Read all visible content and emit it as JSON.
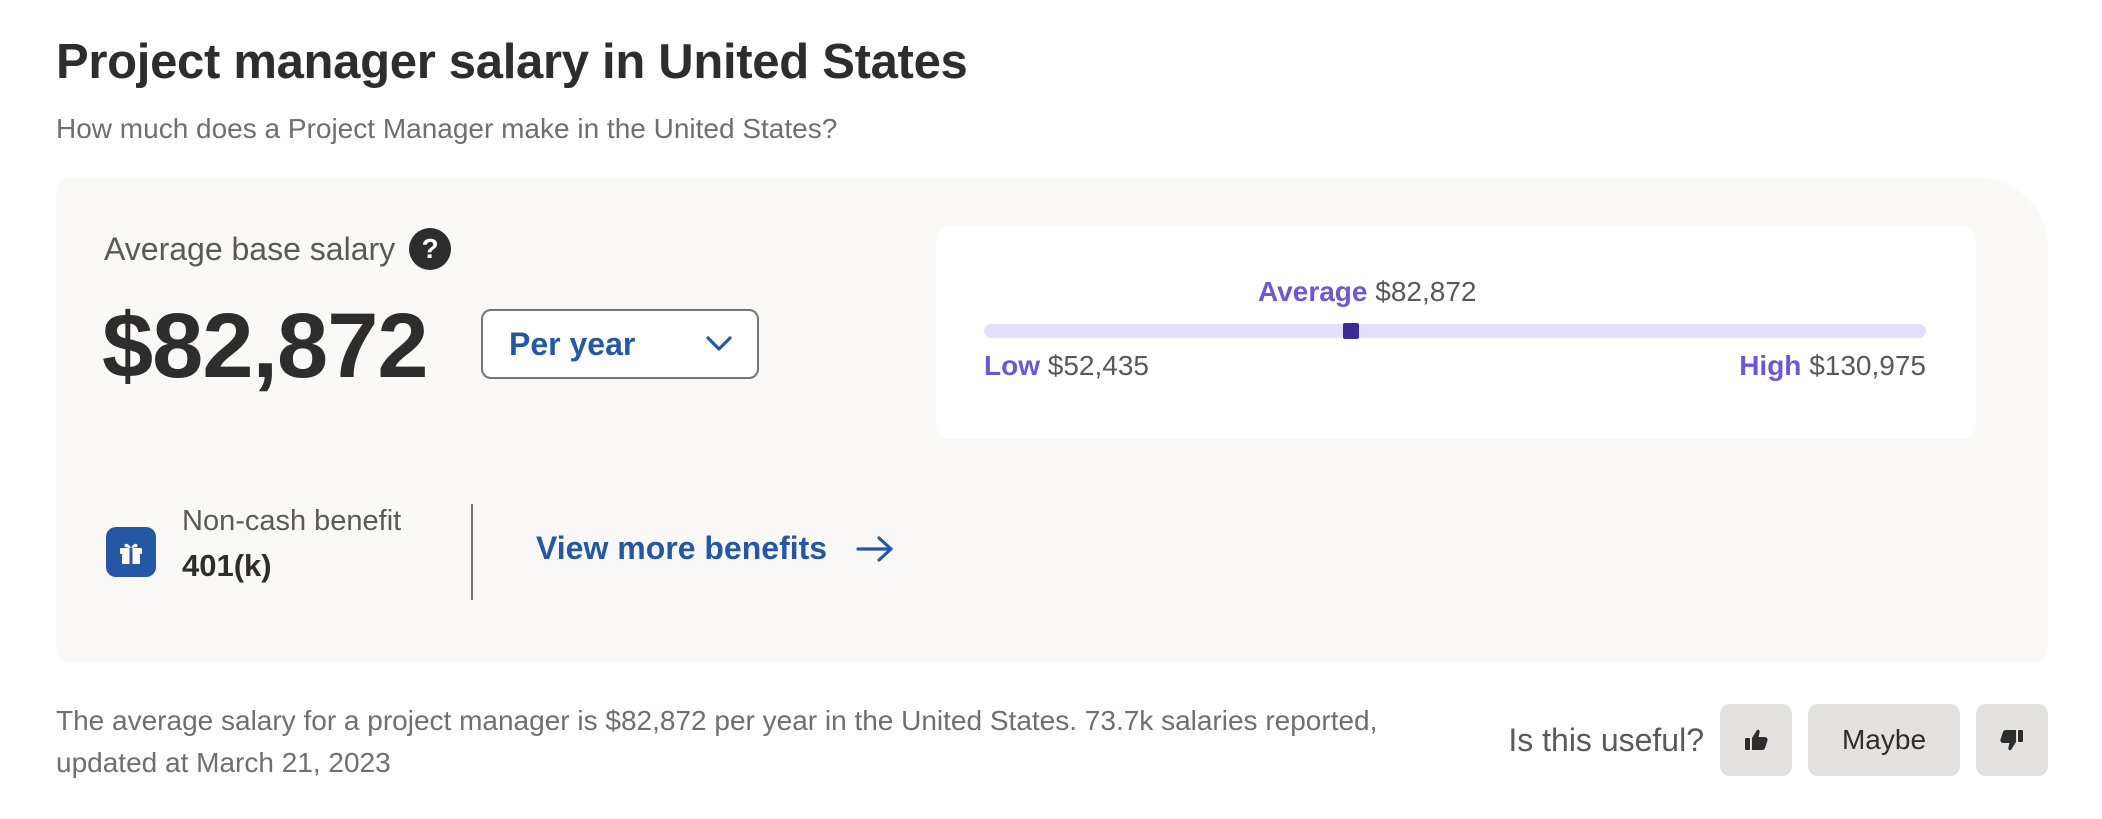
{
  "header": {
    "title": "Project manager salary in United States",
    "subtitle": "How much does a Project Manager make in the United States?"
  },
  "salary": {
    "label": "Average base salary",
    "help_icon": "question-icon",
    "value": "$82,872",
    "period_selected": "Per year"
  },
  "range": {
    "average_label": "Average",
    "average_value": "$82,872",
    "low_label": "Low",
    "low_value": "$52,435",
    "high_label": "High",
    "high_value": "$130,975",
    "average_position_fraction": 0.39,
    "colors": {
      "accent": "#6e57d6",
      "track": "#e4e0fb",
      "marker": "#3e2a94"
    }
  },
  "benefit": {
    "icon": "gift-icon",
    "label": "Non-cash benefit",
    "value": "401(k)",
    "link_label": "View more benefits",
    "link_icon": "arrow-right-icon"
  },
  "summary": {
    "text": "The average salary for a project manager is $82,872 per year in the United States.  73.7k salaries reported, updated at March 21, 2023"
  },
  "feedback": {
    "question": "Is this useful?",
    "yes_icon": "thumbs-up-icon",
    "maybe_label": "Maybe",
    "no_icon": "thumbs-down-icon"
  },
  "colors": {
    "link": "#2557a7",
    "card_background": "#faf9f8",
    "text_primary": "#2d2d2d",
    "text_secondary": "#595959"
  }
}
